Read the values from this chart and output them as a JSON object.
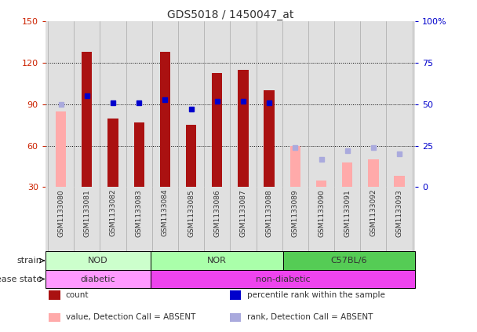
{
  "title": "GDS5018 / 1450047_at",
  "samples": [
    "GSM1133080",
    "GSM1133081",
    "GSM1133082",
    "GSM1133083",
    "GSM1133084",
    "GSM1133085",
    "GSM1133086",
    "GSM1133087",
    "GSM1133088",
    "GSM1133089",
    "GSM1133090",
    "GSM1133091",
    "GSM1133092",
    "GSM1133093"
  ],
  "count_values": [
    null,
    128,
    80,
    77,
    128,
    75,
    113,
    115,
    100,
    null,
    null,
    null,
    null,
    null
  ],
  "count_absent": [
    85,
    null,
    null,
    null,
    null,
    null,
    null,
    null,
    null,
    60,
    35,
    48,
    50,
    38
  ],
  "percentile_present": [
    null,
    55,
    51,
    51,
    53,
    47,
    52,
    52,
    51,
    null,
    null,
    null,
    null,
    null
  ],
  "percentile_absent": [
    50,
    null,
    null,
    null,
    null,
    null,
    null,
    null,
    null,
    24,
    17,
    22,
    24,
    20
  ],
  "ylim_left": [
    30,
    150
  ],
  "ylim_right": [
    0,
    100
  ],
  "yticks_left": [
    30,
    60,
    90,
    120,
    150
  ],
  "yticks_right": [
    0,
    25,
    50,
    75,
    100
  ],
  "strain_groups": [
    {
      "label": "NOD",
      "start": 0,
      "end": 3
    },
    {
      "label": "NOR",
      "start": 4,
      "end": 8
    },
    {
      "label": "C57BL/6",
      "start": 9,
      "end": 13
    }
  ],
  "strain_colors": [
    "#ccffcc",
    "#aaffaa",
    "#55cc55"
  ],
  "disease_groups": [
    {
      "label": "diabetic",
      "start": 0,
      "end": 3
    },
    {
      "label": "non-diabetic",
      "start": 4,
      "end": 13
    }
  ],
  "disease_colors": [
    "#ff99ff",
    "#ee44ee"
  ],
  "bar_color_present": "#aa1111",
  "bar_color_absent": "#ffaaaa",
  "dot_color_present": "#0000cc",
  "dot_color_absent": "#aaaadd",
  "axis_color_left": "#cc2200",
  "axis_color_right": "#0000cc",
  "background_color": "#ffffff",
  "plot_bg_color": "#e0e0e0",
  "title_color": "#333333",
  "bar_width": 0.4
}
